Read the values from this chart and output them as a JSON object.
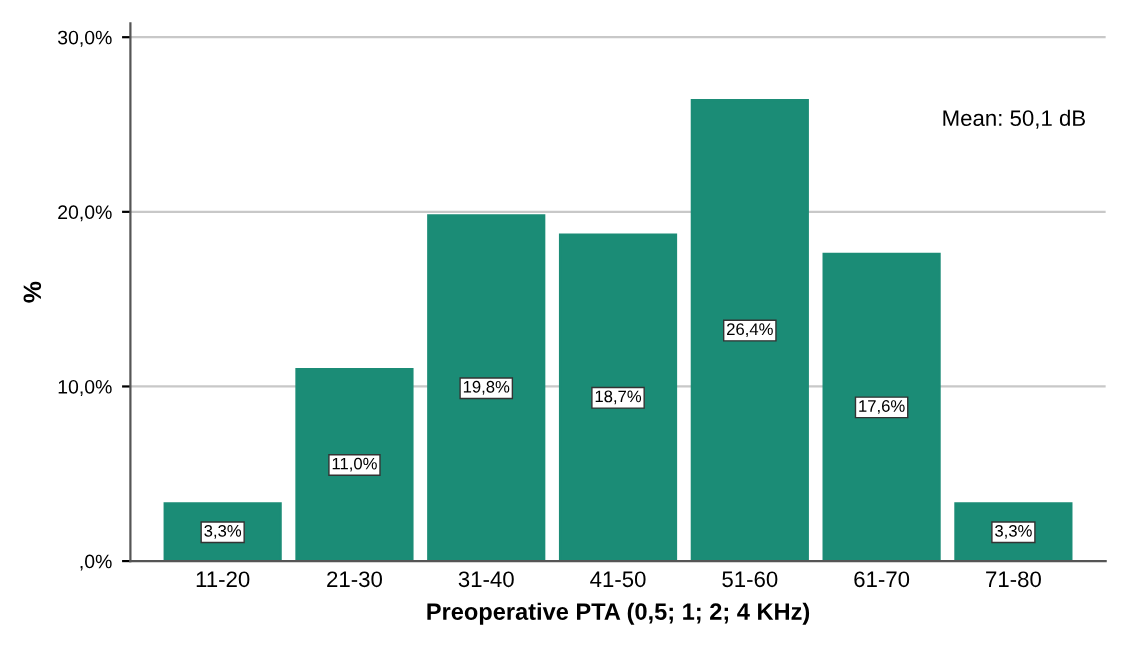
{
  "chart_data": {
    "type": "bar",
    "xlabel": "Preoperative PTA (0,5; 1; 2; 4 KHz)",
    "ylabel": "%",
    "categories": [
      "11-20",
      "21-30",
      "31-40",
      "41-50",
      "51-60",
      "61-70",
      "71-80"
    ],
    "values": [
      3.3,
      11.0,
      19.8,
      18.7,
      26.4,
      17.6,
      3.3
    ],
    "value_labels": [
      "3,3%",
      "11,0%",
      "19,8%",
      "18,7%",
      "26,4%",
      "17,6%",
      "3,3%"
    ],
    "color": "#1b8c76",
    "ylim": [
      0,
      30.8
    ],
    "yticks": [
      {
        "value": 0,
        "label": ",0%"
      },
      {
        "value": 10,
        "label": "10,0%"
      },
      {
        "value": 20,
        "label": "20,0%"
      },
      {
        "value": 30,
        "label": "30,0%"
      }
    ],
    "grid": "y",
    "annotations": [
      "Mean: 50,1 dB"
    ]
  }
}
